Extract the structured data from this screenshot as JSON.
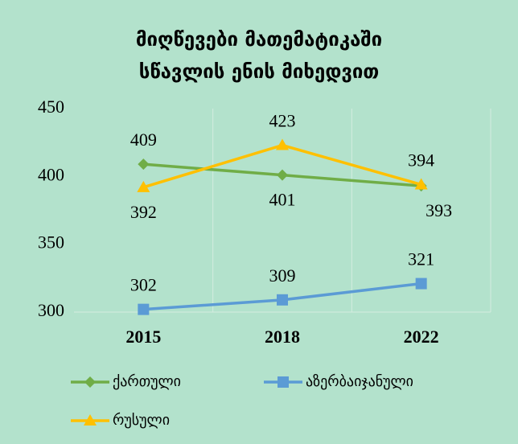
{
  "chart_data": {
    "type": "line",
    "title": [
      "მიღწევები მათემატიკაში",
      "სწავლის ენის მიხედვით"
    ],
    "categories": [
      "2015",
      "2018",
      "2022"
    ],
    "series": [
      {
        "name": "ქართული",
        "color": "#70ad47",
        "marker": "diamond",
        "values": [
          409,
          401,
          393
        ]
      },
      {
        "name": "აზერბაიჯანული",
        "color": "#5b9bd5",
        "marker": "square",
        "values": [
          302,
          309,
          321
        ]
      },
      {
        "name": "რუსული",
        "color": "#ffc000",
        "marker": "triangle",
        "values": [
          392,
          423,
          394
        ]
      }
    ],
    "ylim": [
      300,
      450
    ],
    "yticks": [
      300,
      350,
      400,
      450
    ]
  }
}
